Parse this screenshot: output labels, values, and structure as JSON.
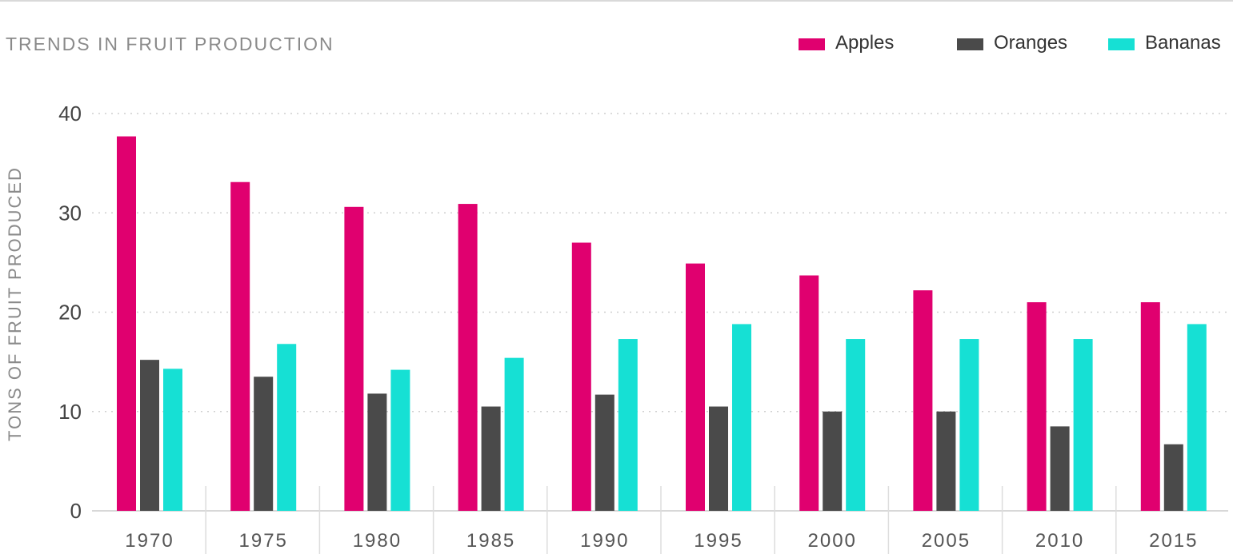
{
  "chart_data": {
    "type": "bar",
    "title": "TRENDS IN FRUIT PRODUCTION",
    "ylabel": "TONS OF FRUIT PRODUCED",
    "xlabel": "",
    "categories": [
      "1970",
      "1975",
      "1980",
      "1985",
      "1990",
      "1995",
      "2000",
      "2005",
      "2010",
      "2015"
    ],
    "series": [
      {
        "name": "Apples",
        "color": "#e0006f",
        "values": [
          37.7,
          33.1,
          30.6,
          30.9,
          27.0,
          24.9,
          23.7,
          22.2,
          21.0,
          21.0
        ]
      },
      {
        "name": "Oranges",
        "color": "#4a4a4a",
        "values": [
          15.2,
          13.5,
          11.8,
          10.5,
          11.7,
          10.5,
          10.0,
          10.0,
          8.5,
          6.7
        ]
      },
      {
        "name": "Bananas",
        "color": "#16e0d4",
        "values": [
          14.3,
          16.8,
          14.2,
          15.4,
          17.3,
          18.8,
          17.3,
          17.3,
          17.3,
          18.8
        ]
      }
    ],
    "ylim": [
      0,
      40
    ],
    "yticks": [
      "0",
      "10",
      "20",
      "30",
      "40"
    ],
    "grid": true,
    "legend_position": "top-right"
  }
}
